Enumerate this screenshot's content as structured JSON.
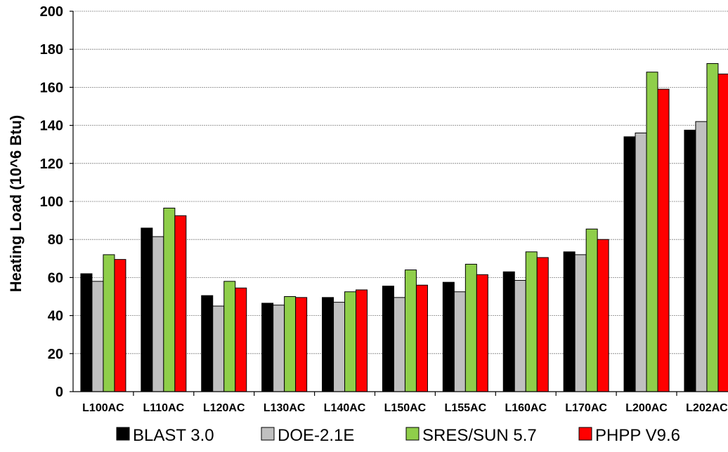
{
  "chart_data": {
    "type": "bar",
    "title": "",
    "xlabel": "",
    "ylabel": "Heating Load (10^6 Btu)",
    "ylim": [
      0,
      200
    ],
    "yticks": [
      0,
      20,
      40,
      60,
      80,
      100,
      120,
      140,
      160,
      180,
      200
    ],
    "grid": true,
    "legend_position": "bottom",
    "categories": [
      "L100AC",
      "L110AC",
      "L120AC",
      "L130AC",
      "L140AC",
      "L150AC",
      "L155AC",
      "L160AC",
      "L170AC",
      "L200AC",
      "L202AC"
    ],
    "series": [
      {
        "name": "BLAST 3.0",
        "color": "#000000",
        "values": [
          62,
          86,
          50.5,
          46.5,
          49.5,
          55.5,
          57.5,
          63,
          73.5,
          134,
          137.5
        ]
      },
      {
        "name": "DOE-2.1E",
        "color": "#c0c0c0",
        "values": [
          58,
          81.5,
          45,
          45.5,
          47,
          49.5,
          52.5,
          58.5,
          72,
          136,
          142
        ]
      },
      {
        "name": "SRES/SUN 5.7",
        "color": "#8fce4a",
        "values": [
          72,
          96.5,
          58,
          50,
          52.5,
          64,
          67,
          73.5,
          85.5,
          168,
          172.5
        ]
      },
      {
        "name": "PHPP V9.6",
        "color": "#ff0000",
        "values": [
          69.5,
          92.5,
          54.5,
          49.5,
          53.5,
          56,
          61.5,
          70.5,
          80,
          159,
          167
        ]
      }
    ]
  }
}
